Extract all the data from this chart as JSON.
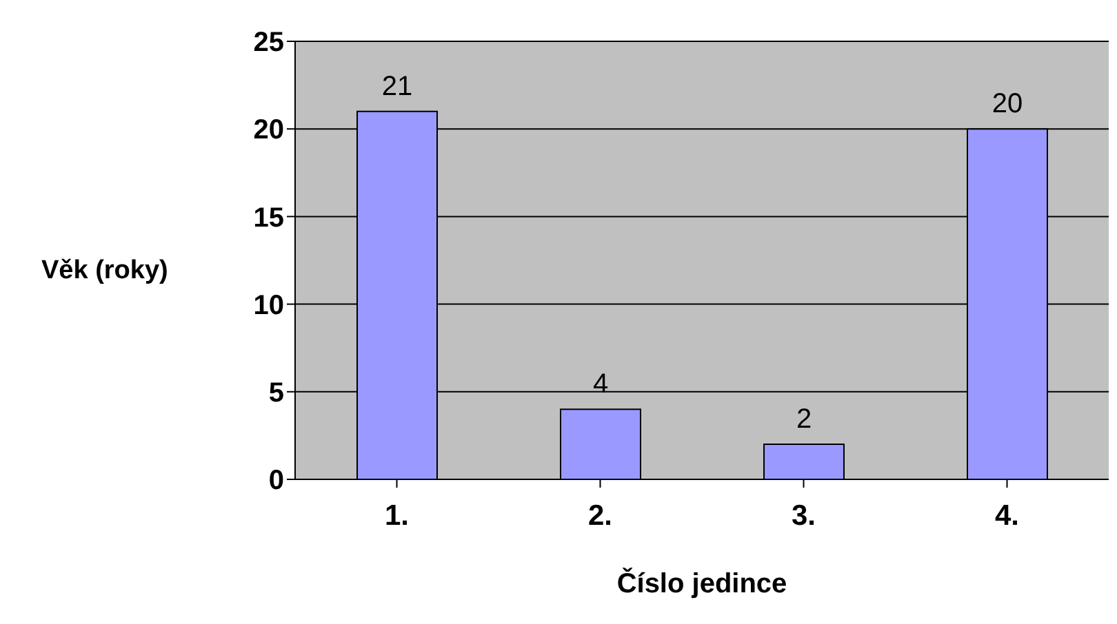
{
  "chart_data": {
    "type": "bar",
    "xlabel": "Číslo jedince",
    "ylabel": "Věk (roky)",
    "categories": [
      "1.",
      "2.",
      "3.",
      "4."
    ],
    "values": [
      21,
      4,
      2,
      20
    ],
    "color": "#9999ff",
    "ylim": [
      0,
      25
    ],
    "yticks": [
      0,
      5,
      10,
      15,
      20,
      25
    ],
    "grid": "y",
    "data_labels": true
  }
}
